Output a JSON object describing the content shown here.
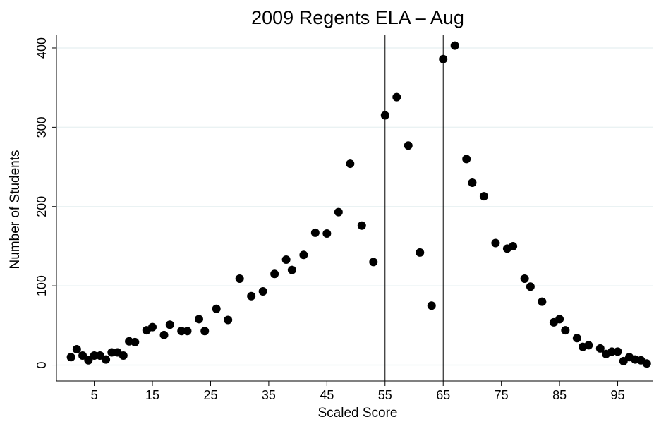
{
  "chart_data": {
    "type": "scatter",
    "title": "2009 Regents ELA – Aug",
    "x_label": "Scaled Score",
    "y_label": "Number of Students",
    "x": [
      1,
      2,
      3,
      4,
      5,
      6,
      7,
      8,
      9,
      10,
      11,
      12,
      14,
      15,
      17,
      18,
      20,
      21,
      23,
      24,
      26,
      28,
      30,
      32,
      34,
      36,
      38,
      39,
      41,
      43,
      45,
      47,
      49,
      51,
      53,
      55,
      57,
      59,
      61,
      63,
      65,
      67,
      69,
      70,
      72,
      74,
      76,
      77,
      79,
      80,
      82,
      84,
      85,
      86,
      88,
      89,
      90,
      92,
      93,
      94,
      95,
      96,
      97,
      98,
      99,
      100
    ],
    "y": [
      10,
      20,
      12,
      6,
      12,
      12,
      7,
      16,
      16,
      12,
      30,
      29,
      44,
      48,
      38,
      51,
      43,
      43,
      58,
      43,
      71,
      57,
      109,
      87,
      93,
      115,
      133,
      120,
      139,
      167,
      166,
      193,
      254,
      176,
      130,
      315,
      338,
      277,
      142,
      75,
      386,
      403,
      260,
      230,
      213,
      154,
      147,
      150,
      109,
      99,
      80,
      54,
      58,
      44,
      34,
      23,
      25,
      21,
      14,
      17,
      17,
      5,
      10,
      7,
      6,
      2
    ],
    "color": "#000000",
    "vlines": [
      55,
      65
    ],
    "xlim": [
      -1.5,
      101
    ],
    "ylim": [
      -20,
      416
    ],
    "xticks": [
      5,
      15,
      25,
      35,
      45,
      55,
      65,
      75,
      85,
      95
    ],
    "yticks": [
      0,
      100,
      200,
      300,
      400
    ],
    "grid": true
  }
}
